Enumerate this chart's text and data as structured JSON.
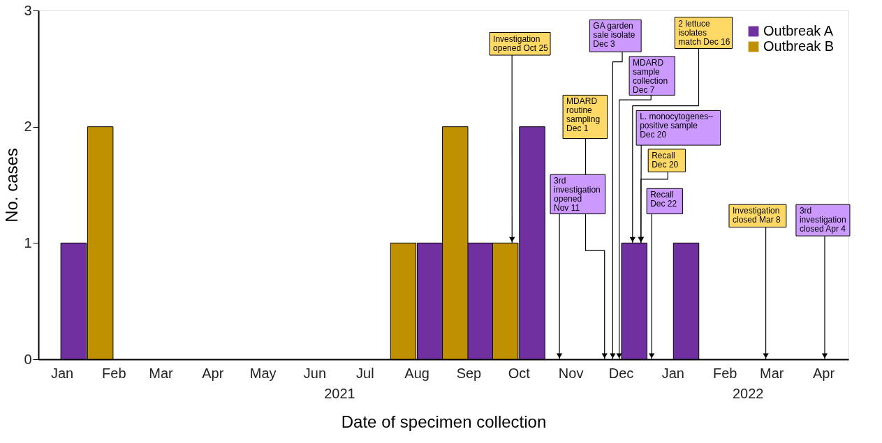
{
  "chart_data": {
    "type": "bar",
    "xlabel": "Date of specimen collection",
    "ylabel": "No. cases",
    "xlim": [
      "2020-12-18",
      "2022-04-16"
    ],
    "xticks": [
      {
        "value": "2021-01",
        "label": "Jan"
      },
      {
        "value": "2021-02",
        "label": "Feb"
      },
      {
        "value": "2021-03",
        "label": "Mar"
      },
      {
        "value": "2021-04",
        "label": "Apr"
      },
      {
        "value": "2021-05",
        "label": "May"
      },
      {
        "value": "2021-06",
        "label": "Jun"
      },
      {
        "value": "2021-07",
        "label": "Jul"
      },
      {
        "value": "2021-08",
        "label": "Aug"
      },
      {
        "value": "2021-09",
        "label": "Sep"
      },
      {
        "value": "2021-10",
        "label": "Oct"
      },
      {
        "value": "2021-11",
        "label": "Nov"
      },
      {
        "value": "2021-12",
        "label": "Dec"
      },
      {
        "value": "2022-01",
        "label": "Jan"
      },
      {
        "value": "2022-02",
        "label": "Feb"
      },
      {
        "value": "2022-03",
        "label": "Mar"
      },
      {
        "value": "2022-04",
        "label": "Apr"
      }
    ],
    "ylim": [
      0,
      3
    ],
    "yticks": [
      0,
      1,
      2,
      3
    ],
    "grid": false,
    "legend": "top right",
    "series": [
      {
        "name": "Outbreak A",
        "color": "#7030a0",
        "x": [
          "2021-01-08",
          "2021-08-09",
          "2021-09-08",
          "2021-10-09",
          "2021-12-09",
          "2022-01-09"
        ],
        "values": [
          1,
          1,
          1,
          2,
          1,
          1
        ]
      },
      {
        "name": "Outbreak B",
        "color": "#bf9000",
        "x": [
          "2021-01-24",
          "2021-07-24",
          "2021-08-24",
          "2021-09-23"
        ],
        "values": [
          2,
          1,
          2,
          1
        ]
      }
    ],
    "annotations": [
      {
        "text": "Investigation opened Oct 25",
        "x": "2021-09-27",
        "y": 1
      },
      "3rd investigation opened Nov 11",
      "MDARD routine sampling Dec 1",
      "GA garden sale isolate Dec 3",
      {
        "text": "MDARD sample collection Dec 7",
        "x": "2021-11-30",
        "y": 0
      },
      {
        "text": "2 lettuce isolates match Dec 16",
        "x": "2021-12-08",
        "y": 1
      },
      {
        "text": "L. monocytogenes–positive sample Dec 20",
        "x": "2021-12-13",
        "y": 1
      },
      {
        "text": "Recall Dec 20",
        "x": "2021-12-13",
        "y": 1
      },
      "Recall Dec 22",
      "Investigation closed Mar 8",
      "3rd investigation closed Apr 4",
      "2021",
      "2022"
    ]
  }
}
